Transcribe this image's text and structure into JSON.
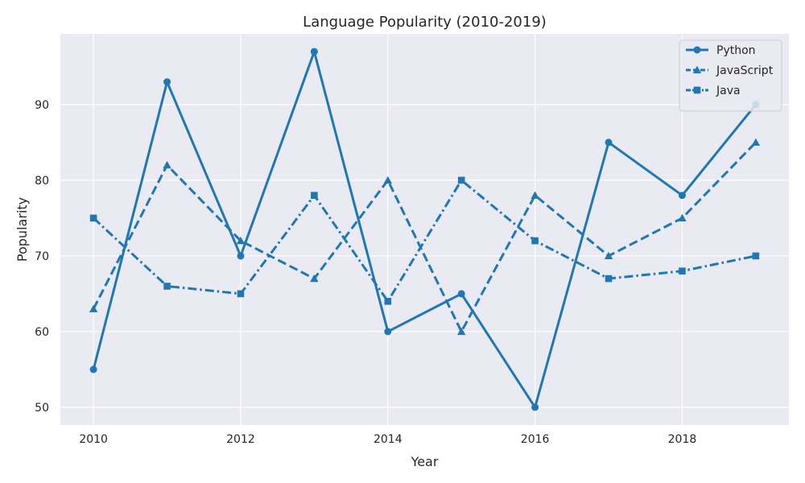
{
  "chart_data": {
    "type": "line",
    "title": "Language Popularity (2010-2019)",
    "xlabel": "Year",
    "ylabel": "Popularity",
    "x": [
      2010,
      2011,
      2012,
      2013,
      2014,
      2015,
      2016,
      2017,
      2018,
      2019
    ],
    "x_ticks": [
      2010,
      2012,
      2014,
      2016,
      2018
    ],
    "y_ticks": [
      50,
      60,
      70,
      80,
      90
    ],
    "xlim": [
      2009.55,
      2019.45
    ],
    "ylim": [
      47.65,
      99.35
    ],
    "grid": true,
    "legend_position": "top-right",
    "series": [
      {
        "name": "Python",
        "values": [
          55,
          93,
          70,
          97,
          60,
          65,
          50,
          85,
          78,
          90
        ],
        "marker": "circle",
        "line_style": "solid",
        "color": "#1f77b4"
      },
      {
        "name": "JavaScript",
        "values": [
          63,
          82,
          72,
          67,
          80,
          60,
          78,
          70,
          75,
          85
        ],
        "marker": "triangle",
        "line_style": "dashed",
        "color": "#1f77b4"
      },
      {
        "name": "Java",
        "values": [
          75,
          66,
          65,
          78,
          64,
          80,
          72,
          67,
          68,
          70
        ],
        "marker": "square",
        "line_style": "dashdot",
        "color": "#1f77b4"
      }
    ],
    "plot_background": "#eaeaf2",
    "grid_color": "#ffffff"
  }
}
